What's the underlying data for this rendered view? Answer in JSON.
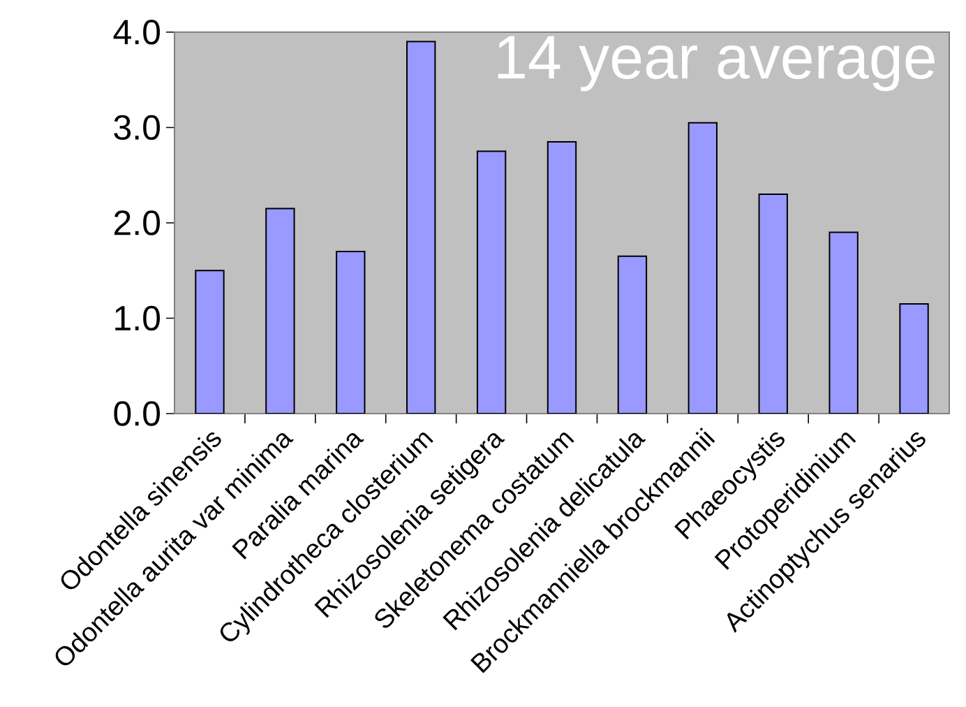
{
  "chart_data": {
    "type": "bar",
    "title": "14 year average",
    "categories": [
      "Odontella sinensis",
      "Odontella aurita var minima",
      "Paralia marina",
      "Cylindrotheca closterium",
      "Rhizosolenia setigera",
      "Skeletonema costatum",
      "Rhizosolenia delicatula",
      "Brockmanniella brockmannii",
      "Phaeocystis",
      "Protoperidinium",
      "Actinoptychus senarius"
    ],
    "values": [
      1.5,
      2.15,
      1.7,
      3.9,
      2.75,
      2.85,
      1.65,
      3.05,
      2.3,
      1.9,
      1.15
    ],
    "color": "#9999ff",
    "ylim": [
      0,
      4
    ],
    "yticks": [
      {
        "value": 0,
        "label": "0.0"
      },
      {
        "value": 1,
        "label": "1.0"
      },
      {
        "value": 2,
        "label": "2.0"
      },
      {
        "value": 3,
        "label": "3.0"
      },
      {
        "value": 4,
        "label": "4.0"
      }
    ]
  }
}
